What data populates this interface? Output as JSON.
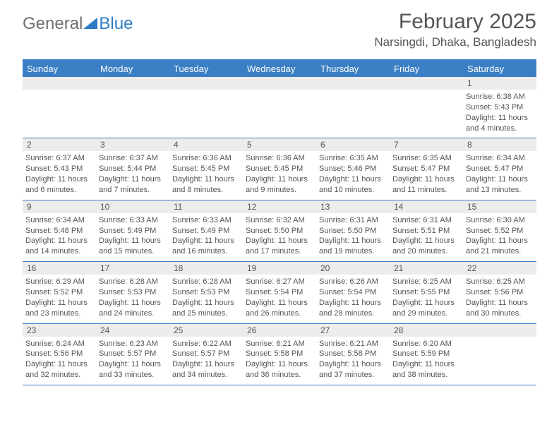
{
  "brand": {
    "part1": "General",
    "part2": "Blue"
  },
  "title": "February 2025",
  "location": "Narsingdi, Dhaka, Bangladesh",
  "day_headers": [
    "Sunday",
    "Monday",
    "Tuesday",
    "Wednesday",
    "Thursday",
    "Friday",
    "Saturday"
  ],
  "colors": {
    "header_bg": "#3b7fc4",
    "header_text": "#ffffff",
    "daynum_bg": "#ececec",
    "text": "#555555",
    "rule": "#3b7fc4",
    "background": "#ffffff",
    "logo_gray": "#707070",
    "logo_blue": "#2f7cc4"
  },
  "typography": {
    "title_fontsize": 30,
    "location_fontsize": 17,
    "dayhead_fontsize": 13,
    "cell_fontsize": 11
  },
  "layout": {
    "columns": 7,
    "rows": 5,
    "first_day_column_index": 6
  },
  "days": [
    {
      "n": 1,
      "sunrise": "6:38 AM",
      "sunset": "5:43 PM",
      "daylight": "11 hours and 4 minutes."
    },
    {
      "n": 2,
      "sunrise": "6:37 AM",
      "sunset": "5:43 PM",
      "daylight": "11 hours and 6 minutes."
    },
    {
      "n": 3,
      "sunrise": "6:37 AM",
      "sunset": "5:44 PM",
      "daylight": "11 hours and 7 minutes."
    },
    {
      "n": 4,
      "sunrise": "6:36 AM",
      "sunset": "5:45 PM",
      "daylight": "11 hours and 8 minutes."
    },
    {
      "n": 5,
      "sunrise": "6:36 AM",
      "sunset": "5:45 PM",
      "daylight": "11 hours and 9 minutes."
    },
    {
      "n": 6,
      "sunrise": "6:35 AM",
      "sunset": "5:46 PM",
      "daylight": "11 hours and 10 minutes."
    },
    {
      "n": 7,
      "sunrise": "6:35 AM",
      "sunset": "5:47 PM",
      "daylight": "11 hours and 11 minutes."
    },
    {
      "n": 8,
      "sunrise": "6:34 AM",
      "sunset": "5:47 PM",
      "daylight": "11 hours and 13 minutes."
    },
    {
      "n": 9,
      "sunrise": "6:34 AM",
      "sunset": "5:48 PM",
      "daylight": "11 hours and 14 minutes."
    },
    {
      "n": 10,
      "sunrise": "6:33 AM",
      "sunset": "5:49 PM",
      "daylight": "11 hours and 15 minutes."
    },
    {
      "n": 11,
      "sunrise": "6:33 AM",
      "sunset": "5:49 PM",
      "daylight": "11 hours and 16 minutes."
    },
    {
      "n": 12,
      "sunrise": "6:32 AM",
      "sunset": "5:50 PM",
      "daylight": "11 hours and 17 minutes."
    },
    {
      "n": 13,
      "sunrise": "6:31 AM",
      "sunset": "5:50 PM",
      "daylight": "11 hours and 19 minutes."
    },
    {
      "n": 14,
      "sunrise": "6:31 AM",
      "sunset": "5:51 PM",
      "daylight": "11 hours and 20 minutes."
    },
    {
      "n": 15,
      "sunrise": "6:30 AM",
      "sunset": "5:52 PM",
      "daylight": "11 hours and 21 minutes."
    },
    {
      "n": 16,
      "sunrise": "6:29 AM",
      "sunset": "5:52 PM",
      "daylight": "11 hours and 23 minutes."
    },
    {
      "n": 17,
      "sunrise": "6:28 AM",
      "sunset": "5:53 PM",
      "daylight": "11 hours and 24 minutes."
    },
    {
      "n": 18,
      "sunrise": "6:28 AM",
      "sunset": "5:53 PM",
      "daylight": "11 hours and 25 minutes."
    },
    {
      "n": 19,
      "sunrise": "6:27 AM",
      "sunset": "5:54 PM",
      "daylight": "11 hours and 26 minutes."
    },
    {
      "n": 20,
      "sunrise": "6:26 AM",
      "sunset": "5:54 PM",
      "daylight": "11 hours and 28 minutes."
    },
    {
      "n": 21,
      "sunrise": "6:25 AM",
      "sunset": "5:55 PM",
      "daylight": "11 hours and 29 minutes."
    },
    {
      "n": 22,
      "sunrise": "6:25 AM",
      "sunset": "5:56 PM",
      "daylight": "11 hours and 30 minutes."
    },
    {
      "n": 23,
      "sunrise": "6:24 AM",
      "sunset": "5:56 PM",
      "daylight": "11 hours and 32 minutes."
    },
    {
      "n": 24,
      "sunrise": "6:23 AM",
      "sunset": "5:57 PM",
      "daylight": "11 hours and 33 minutes."
    },
    {
      "n": 25,
      "sunrise": "6:22 AM",
      "sunset": "5:57 PM",
      "daylight": "11 hours and 34 minutes."
    },
    {
      "n": 26,
      "sunrise": "6:21 AM",
      "sunset": "5:58 PM",
      "daylight": "11 hours and 36 minutes."
    },
    {
      "n": 27,
      "sunrise": "6:21 AM",
      "sunset": "5:58 PM",
      "daylight": "11 hours and 37 minutes."
    },
    {
      "n": 28,
      "sunrise": "6:20 AM",
      "sunset": "5:59 PM",
      "daylight": "11 hours and 38 minutes."
    }
  ],
  "labels": {
    "sunrise": "Sunrise: ",
    "sunset": "Sunset: ",
    "daylight": "Daylight: "
  }
}
